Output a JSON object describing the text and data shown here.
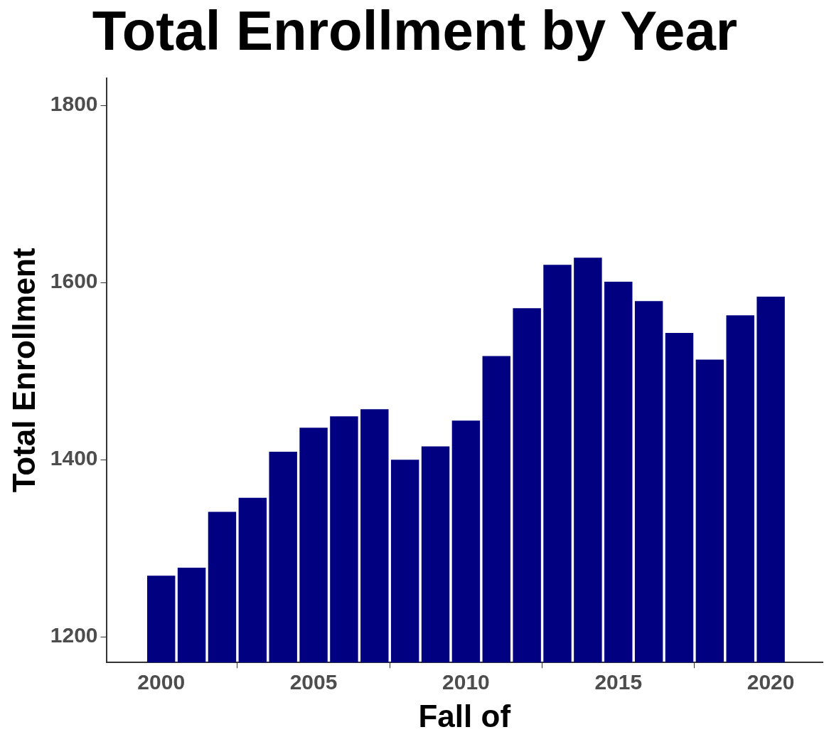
{
  "chart_data": {
    "type": "bar",
    "title": "Total Enrollment by Year",
    "xlabel": "Fall of",
    "ylabel": "Total Enrollment",
    "x": [
      2000,
      2001,
      2002,
      2003,
      2004,
      2005,
      2006,
      2007,
      2008,
      2009,
      2010,
      2011,
      2012,
      2013,
      2014,
      2015,
      2016,
      2017,
      2018,
      2019,
      2020
    ],
    "values": [
      1269,
      1278,
      1341,
      1357,
      1409,
      1436,
      1449,
      1457,
      1400,
      1415,
      1444,
      1517,
      1571,
      1620,
      1628,
      1601,
      1579,
      1543,
      1513,
      1563,
      1584
    ],
    "color": "#000080",
    "xlim": [
      1998.2,
      2021.7
    ],
    "xticks": [
      2000,
      2005,
      2010,
      2015,
      2020
    ],
    "ylim": [
      1171,
      1831
    ],
    "yticks": [
      1200,
      1400,
      1600,
      1800
    ]
  }
}
